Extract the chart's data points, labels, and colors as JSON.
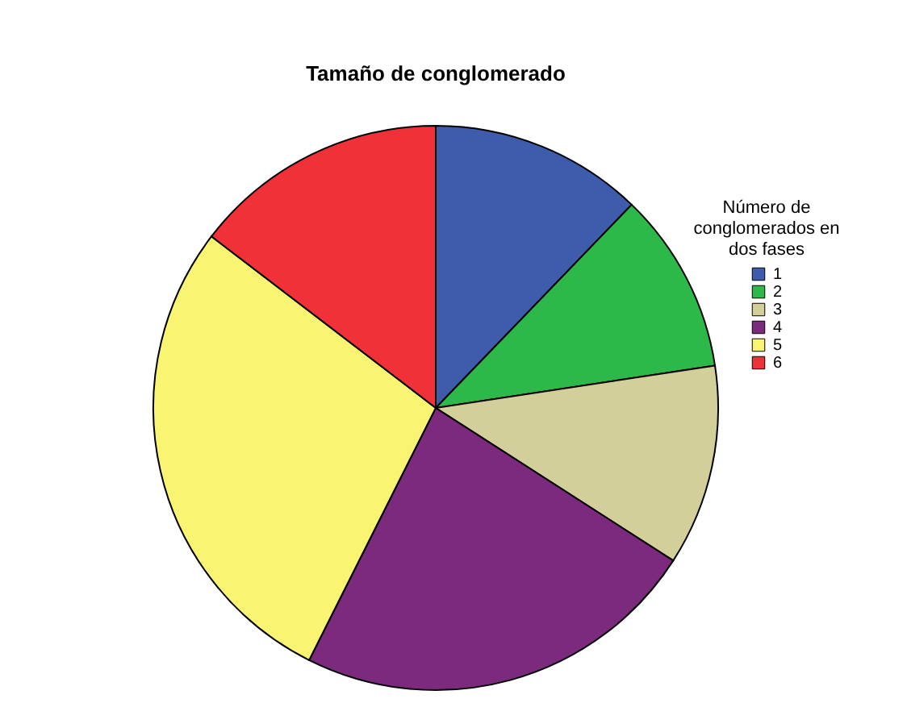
{
  "chart_data": {
    "type": "pie",
    "title": "Tamaño de conglomerado",
    "legend_title": "Número de conglomerados en dos fases",
    "legend": "top right",
    "categories": [
      "1",
      "2",
      "3",
      "4",
      "5",
      "6"
    ],
    "values": [
      12.2,
      10.4,
      11.5,
      23.3,
      28.0,
      14.6
    ],
    "colors": [
      "#3f5bab",
      "#2db84a",
      "#d3cf9a",
      "#7b2a7d",
      "#f9f572",
      "#f03238"
    ]
  }
}
